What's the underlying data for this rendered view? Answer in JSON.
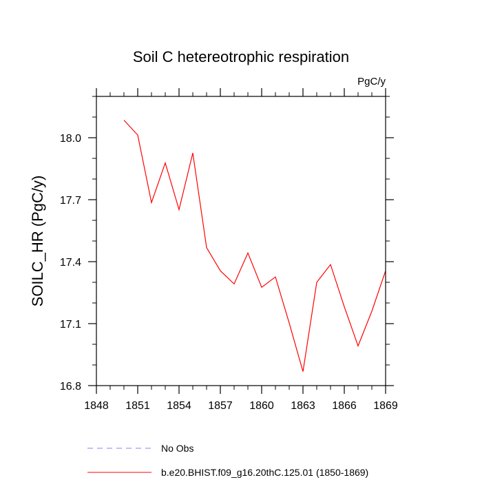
{
  "chart_data": {
    "type": "line",
    "title": "Soil C hetereotrophic respiration",
    "units_label": "PgC/y",
    "ylabel": "SOILC_HR  (PgC/y)",
    "xlabel": "",
    "xlim": [
      1848,
      1869
    ],
    "ylim": [
      16.8,
      18.2
    ],
    "x_ticks": [
      1848,
      1851,
      1854,
      1857,
      1860,
      1863,
      1866,
      1869
    ],
    "x_tick_labels": [
      "1848",
      "1851",
      "1854",
      "1857",
      "1860",
      "1863",
      "1866",
      "1869"
    ],
    "y_ticks": [
      16.8,
      17.1,
      17.4,
      17.7,
      18.0
    ],
    "y_tick_labels": [
      "16.8",
      "17.1",
      "17.4",
      "17.7",
      "18.0"
    ],
    "grid": false,
    "series": [
      {
        "name": "b.e20.BHIST.f09_g16.20thC.125.01 (1850-1869)",
        "color": "#ff0000",
        "x": [
          1850,
          1851,
          1852,
          1853,
          1854,
          1855,
          1856,
          1857,
          1858,
          1859,
          1860,
          1861,
          1862,
          1863,
          1864,
          1865,
          1866,
          1867,
          1868,
          1869
        ],
        "values": [
          18.085,
          18.013,
          17.686,
          17.878,
          17.652,
          17.926,
          17.468,
          17.356,
          17.292,
          17.442,
          17.276,
          17.326,
          17.103,
          16.868,
          17.3,
          17.386,
          17.182,
          16.992,
          17.16,
          17.356
        ]
      }
    ],
    "legend": [
      {
        "label": "No Obs",
        "color": "#8080ff",
        "style": "dashed"
      },
      {
        "label": "b.e20.BHIST.f09_g16.20thC.125.01 (1850-1869)",
        "color": "#ff0000",
        "style": "solid"
      }
    ],
    "legend_position": "bottom"
  }
}
